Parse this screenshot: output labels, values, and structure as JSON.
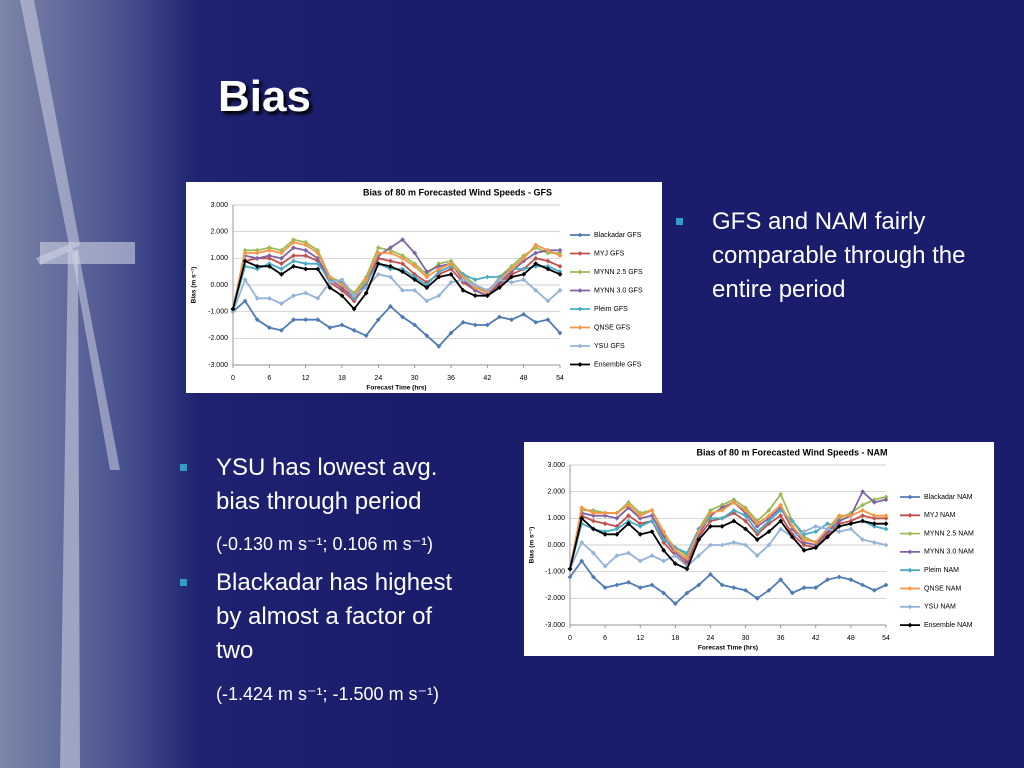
{
  "title": "Bias",
  "bullets_right": [
    {
      "text": "GFS and NAM  fairly comparable through the entire period"
    }
  ],
  "bullets_left": [
    {
      "text": "YSU has lowest avg. bias through period",
      "detail": "(-0.130 m s⁻¹; 0.106 m s⁻¹)"
    },
    {
      "text": "Blackadar  has highest by almost a factor of two",
      "detail": "(-1.424 m s⁻¹; -1.500 m s⁻¹)"
    }
  ],
  "chart_data": [
    {
      "type": "line",
      "title": "Bias of 80 m Forecasted Wind Speeds - GFS",
      "x_label": "Forecast Time (hrs)",
      "y_label": "Bias (m s⁻¹)",
      "x": [
        0,
        2,
        4,
        6,
        8,
        10,
        12,
        14,
        16,
        18,
        20,
        22,
        24,
        26,
        28,
        30,
        32,
        34,
        36,
        38,
        40,
        42,
        44,
        46,
        48,
        50,
        52,
        54
      ],
      "xlim": [
        0,
        54
      ],
      "xticks": [
        0,
        6,
        12,
        18,
        24,
        30,
        36,
        42,
        48,
        54
      ],
      "ylim": [
        -3,
        3
      ],
      "yticks": [
        {
          "value": 3,
          "label": "3.000"
        },
        {
          "value": 2,
          "label": "2.000"
        },
        {
          "value": 1,
          "label": "1.000"
        },
        {
          "value": 0,
          "label": "0.000"
        },
        {
          "value": -1,
          "label": "-1.000"
        },
        {
          "value": -2,
          "label": "-2.000"
        },
        {
          "value": -3,
          "label": "-3.000"
        }
      ],
      "grid": true,
      "legend": "right",
      "series": [
        {
          "name": "Blackadar GFS",
          "color": "#4f7bb5",
          "values": [
            -1.0,
            -0.6,
            -1.3,
            -1.6,
            -1.7,
            -1.3,
            -1.3,
            -1.3,
            -1.6,
            -1.5,
            -1.7,
            -1.9,
            -1.3,
            -0.8,
            -1.2,
            -1.5,
            -1.9,
            -2.3,
            -1.8,
            -1.4,
            -1.5,
            -1.5,
            -1.2,
            -1.3,
            -1.1,
            -1.4,
            -1.3,
            -1.8
          ]
        },
        {
          "name": "MYJ GFS",
          "color": "#c0504d",
          "values": [
            -0.9,
            0.9,
            1.0,
            1.0,
            0.8,
            1.1,
            1.1,
            0.9,
            0.1,
            -0.2,
            -0.6,
            0.0,
            1.0,
            0.9,
            0.8,
            0.4,
            0.1,
            0.4,
            0.6,
            0.1,
            -0.2,
            -0.4,
            0.0,
            0.4,
            0.6,
            1.0,
            0.9,
            0.7
          ]
        },
        {
          "name": "MYNN 2.5 GFS",
          "color": "#9bbb59",
          "values": [
            -0.9,
            1.3,
            1.3,
            1.4,
            1.3,
            1.7,
            1.6,
            1.3,
            0.3,
            0.1,
            -0.3,
            0.3,
            1.4,
            1.3,
            1.1,
            0.8,
            0.4,
            0.8,
            0.9,
            0.4,
            0.0,
            -0.3,
            0.3,
            0.7,
            1.1,
            1.4,
            1.2,
            1.2
          ]
        },
        {
          "name": "MYNN 3.0 GFS",
          "color": "#8064a2",
          "values": [
            -0.9,
            1.1,
            1.0,
            1.1,
            1.0,
            1.4,
            1.3,
            1.0,
            0.2,
            -0.1,
            -0.5,
            0.1,
            1.1,
            1.4,
            1.7,
            1.2,
            0.5,
            0.7,
            0.8,
            0.2,
            -0.2,
            -0.4,
            0.1,
            0.5,
            0.9,
            1.2,
            1.3,
            1.3
          ]
        },
        {
          "name": "Pleim GFS",
          "color": "#4bacc6",
          "values": [
            -0.9,
            0.7,
            0.6,
            0.8,
            0.6,
            0.9,
            0.8,
            0.8,
            0.2,
            0.1,
            -0.5,
            0.1,
            0.8,
            0.6,
            0.6,
            0.3,
            0.0,
            0.5,
            0.7,
            0.4,
            0.2,
            0.3,
            0.3,
            0.6,
            0.6,
            0.7,
            0.7,
            0.5
          ]
        },
        {
          "name": "QNSE GFS",
          "color": "#f79646",
          "values": [
            -0.9,
            1.2,
            1.2,
            1.3,
            1.2,
            1.6,
            1.5,
            1.2,
            0.3,
            0.0,
            -0.4,
            0.2,
            1.2,
            1.2,
            1.0,
            0.7,
            0.3,
            0.6,
            0.8,
            0.3,
            -0.1,
            -0.3,
            0.2,
            0.6,
            1.0,
            1.5,
            1.3,
            1.1
          ]
        },
        {
          "name": "YSU GFS",
          "color": "#95b3d7",
          "values": [
            -1.0,
            0.2,
            -0.5,
            -0.5,
            -0.7,
            -0.4,
            -0.3,
            -0.5,
            0.1,
            0.2,
            -0.4,
            -0.1,
            0.4,
            0.3,
            -0.2,
            -0.2,
            -0.6,
            -0.4,
            0.1,
            0.2,
            0.0,
            -0.2,
            0.2,
            0.1,
            0.2,
            -0.2,
            -0.6,
            -0.2
          ]
        },
        {
          "name": "Ensemble GFS",
          "color": "#000000",
          "values": [
            -0.9,
            0.9,
            0.7,
            0.7,
            0.4,
            0.7,
            0.6,
            0.6,
            -0.1,
            -0.4,
            -0.9,
            -0.3,
            0.8,
            0.7,
            0.5,
            0.2,
            -0.1,
            0.3,
            0.4,
            -0.2,
            -0.4,
            -0.4,
            -0.1,
            0.3,
            0.4,
            0.8,
            0.6,
            0.4
          ]
        }
      ]
    },
    {
      "type": "line",
      "title": "Bias of 80 m Forecasted Wind Speeds - NAM",
      "x_label": "Forecast Time (hrs)",
      "y_label": "Bias (m s⁻¹)",
      "x": [
        0,
        2,
        4,
        6,
        8,
        10,
        12,
        14,
        16,
        18,
        20,
        22,
        24,
        26,
        28,
        30,
        32,
        34,
        36,
        38,
        40,
        42,
        44,
        46,
        48,
        50,
        52,
        54
      ],
      "xlim": [
        0,
        54
      ],
      "xticks": [
        0,
        6,
        12,
        18,
        24,
        30,
        36,
        42,
        48,
        54
      ],
      "ylim": [
        -3,
        3
      ],
      "yticks": [
        {
          "value": 3,
          "label": "3.000"
        },
        {
          "value": 2,
          "label": "2.000"
        },
        {
          "value": 1,
          "label": "1.000"
        },
        {
          "value": 0,
          "label": "0.000"
        },
        {
          "value": -1,
          "label": "-1.000"
        },
        {
          "value": -2,
          "label": "-2.000"
        },
        {
          "value": -3,
          "label": "-3.000"
        }
      ],
      "grid": true,
      "legend": "right",
      "series": [
        {
          "name": "Blackadar NAM",
          "color": "#4f7bb5",
          "values": [
            -1.2,
            -0.6,
            -1.2,
            -1.6,
            -1.5,
            -1.4,
            -1.6,
            -1.5,
            -1.8,
            -2.2,
            -1.8,
            -1.5,
            -1.1,
            -1.5,
            -1.6,
            -1.7,
            -2.0,
            -1.7,
            -1.3,
            -1.8,
            -1.6,
            -1.6,
            -1.3,
            -1.2,
            -1.3,
            -1.5,
            -1.7,
            -1.5
          ]
        },
        {
          "name": "MYJ NAM",
          "color": "#c0504d",
          "values": [
            -0.9,
            1.1,
            0.9,
            0.8,
            0.7,
            1.1,
            0.8,
            0.9,
            0.1,
            -0.4,
            -0.7,
            0.3,
            0.9,
            1.0,
            1.2,
            0.9,
            0.4,
            0.8,
            1.1,
            0.4,
            0.0,
            -0.1,
            0.4,
            0.8,
            0.9,
            1.1,
            1.0,
            1.0
          ]
        },
        {
          "name": "MYNN 2.5 NAM",
          "color": "#9bbb59",
          "values": [
            -0.9,
            1.3,
            1.3,
            1.2,
            1.2,
            1.6,
            1.2,
            1.3,
            0.4,
            -0.1,
            -0.4,
            0.6,
            1.3,
            1.5,
            1.7,
            1.4,
            0.9,
            1.3,
            1.9,
            0.9,
            0.3,
            0.1,
            0.6,
            1.0,
            1.2,
            1.5,
            1.7,
            1.8
          ]
        },
        {
          "name": "MYNN 3.0 NAM",
          "color": "#8064a2",
          "values": [
            -0.9,
            1.2,
            1.1,
            1.1,
            1.0,
            1.4,
            1.0,
            1.1,
            0.3,
            -0.3,
            -0.6,
            0.4,
            1.1,
            1.4,
            1.6,
            1.2,
            0.7,
            1.0,
            1.4,
            0.6,
            0.1,
            0.0,
            0.5,
            0.9,
            1.1,
            2.0,
            1.6,
            1.7
          ]
        },
        {
          "name": "Pleim NAM",
          "color": "#4bacc6",
          "values": [
            -0.9,
            0.8,
            0.6,
            0.5,
            0.6,
            0.9,
            0.7,
            0.9,
            0.2,
            -0.1,
            -0.3,
            0.6,
            1.0,
            1.0,
            1.3,
            1.1,
            0.5,
            0.9,
            1.3,
            0.9,
            0.4,
            0.5,
            0.8,
            0.7,
            0.8,
            0.9,
            0.7,
            0.6
          ]
        },
        {
          "name": "QNSE NAM",
          "color": "#f79646",
          "values": [
            -0.9,
            1.4,
            1.2,
            1.2,
            1.2,
            1.5,
            1.1,
            1.3,
            0.5,
            -0.2,
            -0.5,
            0.5,
            1.2,
            1.3,
            1.6,
            1.3,
            0.8,
            1.1,
            1.5,
            0.7,
            0.2,
            0.1,
            0.6,
            1.1,
            1.1,
            1.3,
            1.1,
            1.1
          ]
        },
        {
          "name": "YSU NAM",
          "color": "#95b3d7",
          "values": [
            -0.9,
            0.1,
            -0.3,
            -0.8,
            -0.4,
            -0.3,
            -0.6,
            -0.4,
            -0.6,
            -0.4,
            -0.8,
            -0.4,
            0.0,
            0.0,
            0.1,
            0.0,
            -0.4,
            0.0,
            0.6,
            0.3,
            0.5,
            0.7,
            0.6,
            0.5,
            0.6,
            0.2,
            0.1,
            0.0
          ]
        },
        {
          "name": "Ensemble NAM",
          "color": "#000000",
          "values": [
            -0.9,
            1.0,
            0.6,
            0.4,
            0.4,
            0.8,
            0.4,
            0.5,
            -0.2,
            -0.7,
            -0.9,
            0.2,
            0.7,
            0.7,
            0.9,
            0.6,
            0.2,
            0.5,
            0.9,
            0.3,
            -0.2,
            -0.1,
            0.3,
            0.7,
            0.8,
            0.9,
            0.8,
            0.8
          ]
        }
      ]
    }
  ]
}
